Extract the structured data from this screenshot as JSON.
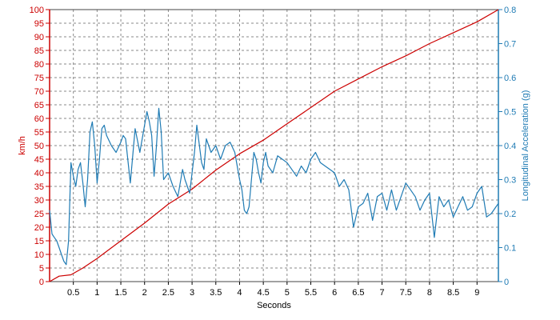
{
  "chart_data": {
    "type": "line",
    "title": "",
    "xlabel": "Seconds",
    "ylabel_left": "km/h",
    "ylabel_right": "Longitudinal Acceleration (g)",
    "xlim": [
      0,
      9.45
    ],
    "ylim_left": [
      0,
      100
    ],
    "ylim_right": [
      0,
      0.8
    ],
    "x_ticks": [
      0.5,
      1,
      1.5,
      2,
      2.5,
      3,
      3.5,
      4,
      4.5,
      5,
      5.5,
      6,
      6.5,
      7,
      7.5,
      8,
      8.5,
      9
    ],
    "x_tick_labels": [
      "0.5",
      "1",
      "1.5",
      "2",
      "2.5",
      "3",
      "3.5",
      "4",
      "4.5",
      "5",
      "5.5",
      "6",
      "6.5",
      "7",
      "7.5",
      "8",
      "8.5",
      "9"
    ],
    "y_left_ticks": [
      0,
      5,
      10,
      15,
      20,
      25,
      30,
      35,
      40,
      45,
      50,
      55,
      60,
      65,
      70,
      75,
      80,
      85,
      90,
      95,
      100
    ],
    "y_left_tick_labels": [
      "0",
      "5",
      "10",
      "15",
      "20",
      "25",
      "30",
      "35",
      "40",
      "45",
      "50",
      "55",
      "60",
      "65",
      "70",
      "75",
      "80",
      "85",
      "90",
      "95",
      "100"
    ],
    "y_right_ticks": [
      0,
      0.1,
      0.2,
      0.3,
      0.4,
      0.5,
      0.6,
      0.7,
      0.8
    ],
    "y_right_tick_labels": [
      "0",
      "0.1",
      "0.2",
      "0.3",
      "0.4",
      "0.5",
      "0.6",
      "0.7",
      "0.8"
    ],
    "grid": true,
    "colors": {
      "speed": "#cc0000",
      "accel": "#1f7bb4",
      "grid": "#8a8a8a",
      "frame": "#444444"
    },
    "series": [
      {
        "axis": "left",
        "x": [
          0,
          0.2,
          0.45,
          0.7,
          1.0,
          1.5,
          2.0,
          2.5,
          3.0,
          3.5,
          4.0,
          4.5,
          5.0,
          5.5,
          6.0,
          6.5,
          7.0,
          7.5,
          8.0,
          8.5,
          9.0,
          9.45
        ],
        "y": [
          0,
          2,
          2.5,
          5,
          8.5,
          15,
          21.5,
          28.5,
          34,
          41,
          47,
          52,
          58,
          64,
          70,
          74.5,
          79,
          83,
          87.5,
          91.5,
          95.5,
          100
        ]
      },
      {
        "axis": "right",
        "x": [
          0,
          0.05,
          0.1,
          0.15,
          0.2,
          0.25,
          0.3,
          0.35,
          0.4,
          0.45,
          0.5,
          0.55,
          0.6,
          0.65,
          0.7,
          0.75,
          0.8,
          0.85,
          0.9,
          0.95,
          1.0,
          1.05,
          1.1,
          1.15,
          1.2,
          1.3,
          1.4,
          1.5,
          1.55,
          1.6,
          1.7,
          1.8,
          1.9,
          2.0,
          2.05,
          2.1,
          2.15,
          2.2,
          2.25,
          2.3,
          2.35,
          2.4,
          2.5,
          2.6,
          2.7,
          2.8,
          2.85,
          2.9,
          2.95,
          3.0,
          3.05,
          3.1,
          3.2,
          3.25,
          3.3,
          3.4,
          3.5,
          3.6,
          3.7,
          3.8,
          3.9,
          4.0,
          4.05,
          4.1,
          4.15,
          4.2,
          4.3,
          4.35,
          4.4,
          4.45,
          4.5,
          4.55,
          4.6,
          4.7,
          4.8,
          4.9,
          5.0,
          5.1,
          5.2,
          5.3,
          5.4,
          5.5,
          5.6,
          5.7,
          5.8,
          5.9,
          6.0,
          6.1,
          6.2,
          6.3,
          6.4,
          6.5,
          6.6,
          6.7,
          6.8,
          6.9,
          7.0,
          7.1,
          7.2,
          7.3,
          7.4,
          7.5,
          7.6,
          7.7,
          7.8,
          7.9,
          8.0,
          8.1,
          8.2,
          8.3,
          8.4,
          8.5,
          8.6,
          8.7,
          8.8,
          8.9,
          9.0,
          9.1,
          9.2,
          9.3,
          9.4,
          9.45
        ],
        "y": [
          0.21,
          0.14,
          0.13,
          0.12,
          0.1,
          0.08,
          0.06,
          0.05,
          0.12,
          0.35,
          0.31,
          0.28,
          0.33,
          0.35,
          0.29,
          0.22,
          0.3,
          0.44,
          0.47,
          0.4,
          0.29,
          0.36,
          0.45,
          0.46,
          0.43,
          0.4,
          0.38,
          0.41,
          0.43,
          0.42,
          0.29,
          0.45,
          0.38,
          0.46,
          0.5,
          0.47,
          0.43,
          0.31,
          0.4,
          0.51,
          0.44,
          0.3,
          0.32,
          0.28,
          0.25,
          0.33,
          0.3,
          0.28,
          0.26,
          0.32,
          0.38,
          0.46,
          0.35,
          0.33,
          0.42,
          0.38,
          0.4,
          0.36,
          0.4,
          0.41,
          0.38,
          0.3,
          0.27,
          0.21,
          0.2,
          0.22,
          0.38,
          0.36,
          0.32,
          0.29,
          0.35,
          0.38,
          0.34,
          0.32,
          0.37,
          0.36,
          0.35,
          0.33,
          0.31,
          0.34,
          0.32,
          0.36,
          0.38,
          0.35,
          0.34,
          0.33,
          0.32,
          0.28,
          0.3,
          0.27,
          0.16,
          0.22,
          0.23,
          0.26,
          0.18,
          0.25,
          0.26,
          0.21,
          0.27,
          0.21,
          0.25,
          0.29,
          0.27,
          0.25,
          0.21,
          0.24,
          0.26,
          0.13,
          0.25,
          0.22,
          0.24,
          0.19,
          0.22,
          0.25,
          0.21,
          0.22,
          0.26,
          0.28,
          0.19,
          0.2,
          0.22,
          0.23
        ]
      }
    ]
  }
}
